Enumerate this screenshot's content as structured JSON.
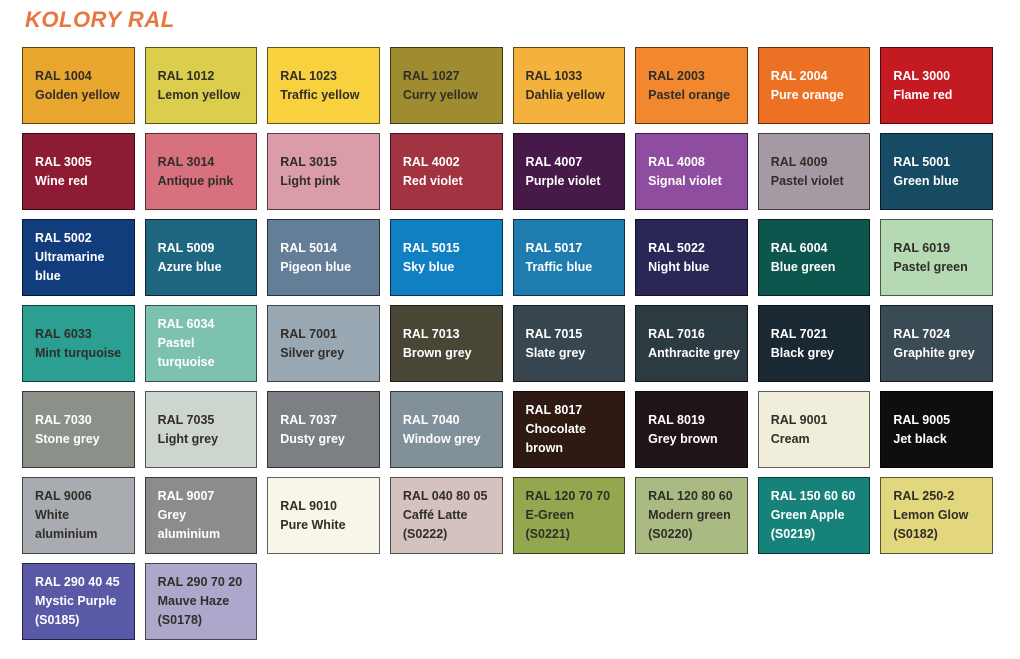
{
  "title": "KOLORY RAL",
  "accent_color": "#E8763F",
  "text_dark": "#312D28",
  "text_light": "#FFFFFF",
  "swatches": [
    {
      "code": "RAL 1004",
      "name": "Golden yellow",
      "sub": "",
      "bg": "#E8A62F",
      "fg": "#312D28"
    },
    {
      "code": "RAL 1012",
      "name": "Lemon yellow",
      "sub": "",
      "bg": "#DBCE4D",
      "fg": "#312D28"
    },
    {
      "code": "RAL 1023",
      "name": "Traffic yellow",
      "sub": "",
      "bg": "#F8D23E",
      "fg": "#312D28"
    },
    {
      "code": "RAL 1027",
      "name": "Curry yellow",
      "sub": "",
      "bg": "#A08C30",
      "fg": "#312D28"
    },
    {
      "code": "RAL 1033",
      "name": "Dahlia yellow",
      "sub": "",
      "bg": "#F4B23C",
      "fg": "#312D28"
    },
    {
      "code": "RAL 2003",
      "name": "Pastel orange",
      "sub": "",
      "bg": "#F1882F",
      "fg": "#312D28"
    },
    {
      "code": "RAL 2004",
      "name": "Pure orange",
      "sub": "",
      "bg": "#EC7124",
      "fg": "#FFFFFF"
    },
    {
      "code": "RAL 3000",
      "name": "Flame red",
      "sub": "",
      "bg": "#C41A22",
      "fg": "#FFFFFF"
    },
    {
      "code": "RAL 3005",
      "name": "Wine red",
      "sub": "",
      "bg": "#8D1B34",
      "fg": "#FFFFFF"
    },
    {
      "code": "RAL 3014",
      "name": "Antique pink",
      "sub": "",
      "bg": "#D8717E",
      "fg": "#312D28"
    },
    {
      "code": "RAL 3015",
      "name": "Light pink",
      "sub": "",
      "bg": "#DB9CAA",
      "fg": "#312D28"
    },
    {
      "code": "RAL 4002",
      "name": "Red violet",
      "sub": "",
      "bg": "#A23340",
      "fg": "#FFFFFF"
    },
    {
      "code": "RAL 4007",
      "name": "Purple violet",
      "sub": "",
      "bg": "#471949",
      "fg": "#FFFFFF"
    },
    {
      "code": "RAL 4008",
      "name": "Signal violet",
      "sub": "",
      "bg": "#8E4D9E",
      "fg": "#FFFFFF"
    },
    {
      "code": "RAL 4009",
      "name": "Pastel violet",
      "sub": "",
      "bg": "#A59AA3",
      "fg": "#312D28"
    },
    {
      "code": "RAL 5001",
      "name": "Green blue",
      "sub": "",
      "bg": "#174A63",
      "fg": "#FFFFFF"
    },
    {
      "code": "RAL 5002",
      "name": "Ultramarine blue",
      "sub": "",
      "bg": "#113D7D",
      "fg": "#FFFFFF"
    },
    {
      "code": "RAL 5009",
      "name": "Azure blue",
      "sub": "",
      "bg": "#1F6680",
      "fg": "#FFFFFF"
    },
    {
      "code": "RAL 5014",
      "name": "Pigeon blue",
      "sub": "",
      "bg": "#647E97",
      "fg": "#FFFFFF"
    },
    {
      "code": "RAL 5015",
      "name": "Sky blue",
      "sub": "",
      "bg": "#1180C2",
      "fg": "#FFFFFF"
    },
    {
      "code": "RAL 5017",
      "name": "Traffic blue",
      "sub": "",
      "bg": "#1E7CAE",
      "fg": "#FFFFFF"
    },
    {
      "code": "RAL 5022",
      "name": "Night blue",
      "sub": "",
      "bg": "#2A2757",
      "fg": "#FFFFFF"
    },
    {
      "code": "RAL 6004",
      "name": "Blue green",
      "sub": "",
      "bg": "#0D564E",
      "fg": "#FFFFFF"
    },
    {
      "code": "RAL 6019",
      "name": "Pastel green",
      "sub": "",
      "bg": "#B5D9B3",
      "fg": "#312D28"
    },
    {
      "code": "RAL 6033",
      "name": "Mint turquoise",
      "sub": "",
      "bg": "#2C9F93",
      "fg": "#312D28"
    },
    {
      "code": "RAL 6034",
      "name": "Pastel turquoise",
      "sub": "",
      "bg": "#7DC2B0",
      "fg": "#FFFFFF"
    },
    {
      "code": "RAL 7001",
      "name": "Silver grey",
      "sub": "",
      "bg": "#9AA8B4",
      "fg": "#312D28"
    },
    {
      "code": "RAL 7013",
      "name": "Brown grey",
      "sub": "",
      "bg": "#4A4635",
      "fg": "#FFFFFF"
    },
    {
      "code": "RAL 7015",
      "name": "Slate grey",
      "sub": "",
      "bg": "#39464F",
      "fg": "#FFFFFF"
    },
    {
      "code": "RAL 7016",
      "name": "Anthracite grey",
      "sub": "",
      "bg": "#2C3A42",
      "fg": "#FFFFFF"
    },
    {
      "code": "RAL 7021",
      "name": "Black grey",
      "sub": "",
      "bg": "#1A2831",
      "fg": "#FFFFFF"
    },
    {
      "code": "RAL 7024",
      "name": "Graphite grey",
      "sub": "",
      "bg": "#3A4B56",
      "fg": "#FFFFFF"
    },
    {
      "code": "RAL 7030",
      "name": "Stone grey",
      "sub": "",
      "bg": "#8B9188",
      "fg": "#FFFFFF"
    },
    {
      "code": "RAL 7035",
      "name": "Light grey",
      "sub": "",
      "bg": "#CDD5CF",
      "fg": "#312D28"
    },
    {
      "code": "RAL 7037",
      "name": "Dusty grey",
      "sub": "",
      "bg": "#7C7F84",
      "fg": "#FFFFFF"
    },
    {
      "code": "RAL 7040",
      "name": "Window grey",
      "sub": "",
      "bg": "#82909A",
      "fg": "#FFFFFF"
    },
    {
      "code": "RAL 8017",
      "name": "Chocolate brown",
      "sub": "",
      "bg": "#2E1A12",
      "fg": "#FFFFFF"
    },
    {
      "code": "RAL 8019",
      "name": "Grey brown",
      "sub": "",
      "bg": "#1F1416",
      "fg": "#FFFFFF"
    },
    {
      "code": "RAL 9001",
      "name": "Cream",
      "sub": "",
      "bg": "#F0EEDA",
      "fg": "#312D28"
    },
    {
      "code": "RAL 9005",
      "name": "Jet black",
      "sub": "",
      "bg": "#0E0E10",
      "fg": "#FFFFFF"
    },
    {
      "code": "RAL 9006",
      "name": "White aluminium",
      "sub": "",
      "bg": "#A8ACB0",
      "fg": "#312D28"
    },
    {
      "code": "RAL 9007",
      "name": "Grey aluminium",
      "sub": "",
      "bg": "#8A8C8E",
      "fg": "#FFFFFF"
    },
    {
      "code": "RAL 9010",
      "name": "Pure White",
      "sub": "",
      "bg": "#F7F6E9",
      "fg": "#312D28"
    },
    {
      "code": "RAL 040 80 05",
      "name": "Caffé Latte",
      "sub": "(S0222)",
      "bg": "#D3C2BD",
      "fg": "#312D28"
    },
    {
      "code": "RAL 120 70 70",
      "name": "E-Green",
      "sub": "(S0221)",
      "bg": "#93A84E",
      "fg": "#312D28"
    },
    {
      "code": "RAL 120 80 60",
      "name": "Modern green",
      "sub": "(S0220)",
      "bg": "#A9BA82",
      "fg": "#312D28"
    },
    {
      "code": "RAL 150 60 60",
      "name": "Green Apple",
      "sub": "(S0219)",
      "bg": "#16827A",
      "fg": "#FFFFFF"
    },
    {
      "code": "RAL 250-2",
      "name": "Lemon Glow",
      "sub": "(S0182)",
      "bg": "#E3D77E",
      "fg": "#312D28"
    },
    {
      "code": "RAL 290 40 45",
      "name": "Mystic Purple",
      "sub": "(S0185)",
      "bg": "#5A59A8",
      "fg": "#FFFFFF"
    },
    {
      "code": "RAL 290 70 20",
      "name": "Mauve Haze",
      "sub": "(S0178)",
      "bg": "#ABA8CC",
      "fg": "#312D28"
    }
  ]
}
